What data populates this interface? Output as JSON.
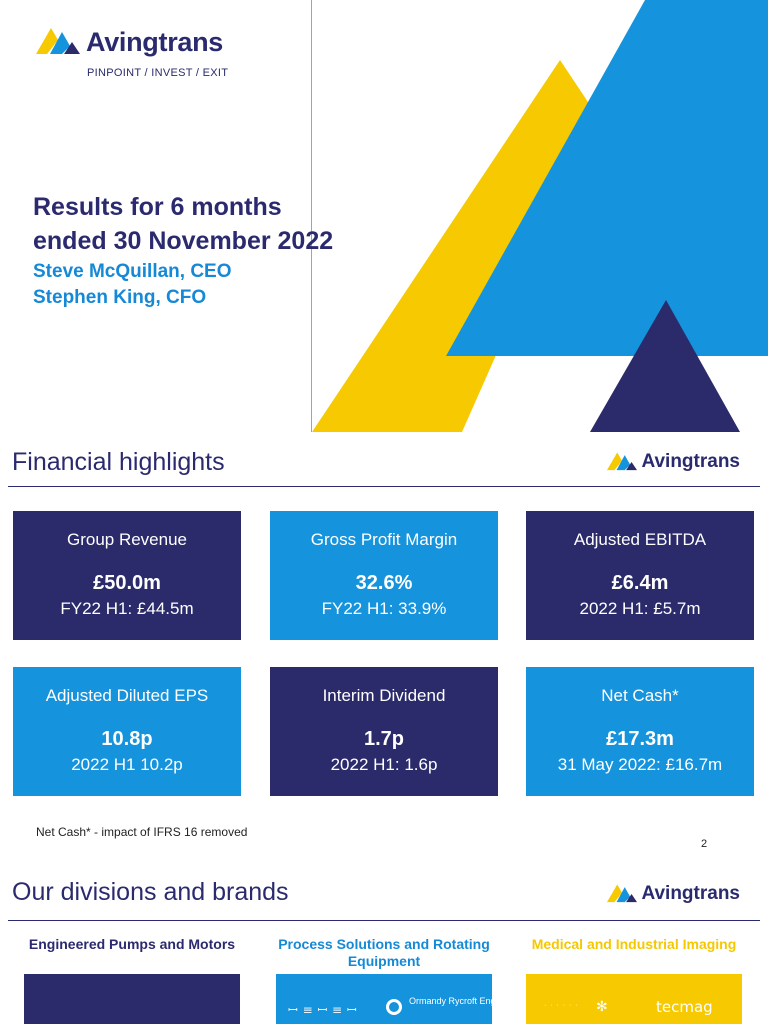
{
  "brand": {
    "name": "Avingtrans",
    "tagline": "PINPOINT / INVEST / EXIT",
    "colors": {
      "navy": "#2b2a6b",
      "blue": "#1593dc",
      "yellow": "#f7c900",
      "text_blue": "#1689d6"
    }
  },
  "cover": {
    "title_line_1": "Results for 6 months",
    "title_line_2": "ended 30 November 2022",
    "presenters": [
      "Steve McQuillan, CEO",
      "Stephen King, CFO"
    ]
  },
  "highlights": {
    "heading": "Financial highlights",
    "cards": [
      {
        "label": "Group Revenue",
        "value": "£50.0m",
        "compare": "FY22 H1: £44.5m",
        "color": "navy"
      },
      {
        "label": "Gross Profit Margin",
        "value": "32.6%",
        "compare": "FY22 H1: 33.9%",
        "color": "blue"
      },
      {
        "label": "Adjusted EBITDA",
        "value": "£6.4m",
        "compare": "2022 H1: £5.7m",
        "color": "navy"
      },
      {
        "label": "Adjusted Diluted EPS",
        "value": "10.8p",
        "compare": "2022 H1 10.2p",
        "color": "blue"
      },
      {
        "label": "Interim Dividend",
        "value": "1.7p",
        "compare": "2022 H1: 1.6p",
        "color": "navy"
      },
      {
        "label": "Net Cash*",
        "value": "£17.3m",
        "compare": "31 May 2022: £16.7m",
        "color": "blue"
      }
    ],
    "footnote": "Net Cash*  - impact of IFRS 16 removed",
    "page_number": "2"
  },
  "divisions": {
    "heading": "Our divisions and brands",
    "columns": [
      {
        "title": "Engineered Pumps and Motors"
      },
      {
        "title": "Process Solutions and Rotating Equipment",
        "brands": [
          "Ormandy Rycroft Engineering"
        ]
      },
      {
        "title": "Medical and Industrial Imaging",
        "brands": [
          "tecmag"
        ]
      }
    ]
  },
  "icons": [
    "avingtrans-logo-icon",
    "ormandy-logo-icon"
  ]
}
